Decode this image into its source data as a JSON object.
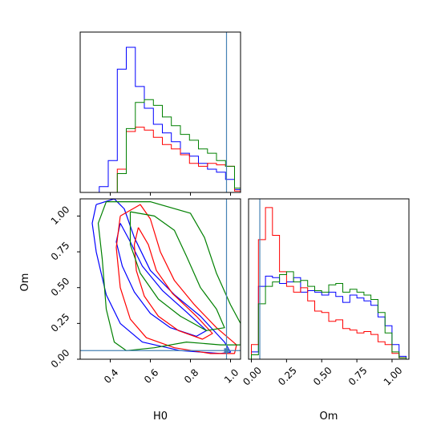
{
  "chart_data": {
    "type": "corner",
    "parameters": [
      "H0",
      "Om"
    ],
    "colors": {
      "blue": "#0000ff",
      "red": "#ff0000",
      "green": "#008000",
      "truth": "#4682b4"
    },
    "truth": {
      "H0": 0.98,
      "Om": 0.06
    },
    "panels": [
      {
        "id": "hist-H0",
        "type": "histogram",
        "xlim": [
          0.25,
          1.05
        ],
        "bins": [
          0.255,
          0.3,
          0.345,
          0.39,
          0.435,
          0.48,
          0.525,
          0.57,
          0.615,
          0.66,
          0.705,
          0.75,
          0.795,
          0.84,
          0.885,
          0.93,
          0.975,
          1.02,
          1.05
        ],
        "series": [
          {
            "color": "blue",
            "counts": [
              0,
              0,
              4,
              22,
              85,
              100,
              73,
              58,
              47,
              41,
              35,
              27,
              25,
              20,
              16,
              14,
              9,
              2
            ]
          },
          {
            "color": "red",
            "counts": [
              0,
              0,
              0,
              0,
              16,
              42,
              45,
              43,
              38,
              33,
              30,
              26,
              20,
              18,
              20,
              19,
              18,
              1
            ]
          },
          {
            "color": "green",
            "counts": [
              0,
              0,
              0,
              0,
              13,
              44,
              62,
              64,
              60,
              52,
              46,
              40,
              36,
              30,
              27,
              22,
              18,
              3
            ]
          }
        ]
      },
      {
        "id": "contour-H0-Om",
        "type": "contour",
        "xlim": [
          0.25,
          1.05
        ],
        "ylim": [
          0.0,
          1.12
        ],
        "xticks": [
          "0.4",
          "0.6",
          "0.8",
          "1.0"
        ],
        "yticks": [
          "0.00",
          "0.25",
          "0.50",
          "0.75",
          "1.00"
        ],
        "xlabel": "H0",
        "ylabel": "Om",
        "series": [
          {
            "color": "blue",
            "level": "outer",
            "points": [
              [
                0.33,
                1.08
              ],
              [
                0.42,
                1.12
              ],
              [
                0.47,
                1.05
              ],
              [
                0.52,
                0.85
              ],
              [
                0.6,
                0.62
              ],
              [
                0.72,
                0.45
              ],
              [
                0.85,
                0.3
              ],
              [
                0.97,
                0.12
              ],
              [
                1.0,
                0.05
              ],
              [
                0.95,
                0.04
              ],
              [
                0.75,
                0.06
              ],
              [
                0.56,
                0.12
              ],
              [
                0.45,
                0.25
              ],
              [
                0.38,
                0.45
              ],
              [
                0.33,
                0.75
              ],
              [
                0.31,
                0.95
              ],
              [
                0.33,
                1.08
              ]
            ]
          },
          {
            "color": "blue",
            "level": "inner",
            "points": [
              [
                0.45,
                0.95
              ],
              [
                0.5,
                0.82
              ],
              [
                0.56,
                0.65
              ],
              [
                0.66,
                0.48
              ],
              [
                0.78,
                0.33
              ],
              [
                0.88,
                0.2
              ],
              [
                0.83,
                0.16
              ],
              [
                0.7,
                0.22
              ],
              [
                0.6,
                0.32
              ],
              [
                0.52,
                0.47
              ],
              [
                0.46,
                0.65
              ],
              [
                0.43,
                0.82
              ],
              [
                0.45,
                0.95
              ]
            ]
          },
          {
            "color": "red",
            "level": "outer",
            "points": [
              [
                0.45,
                1.0
              ],
              [
                0.55,
                1.08
              ],
              [
                0.6,
                0.98
              ],
              [
                0.65,
                0.75
              ],
              [
                0.72,
                0.55
              ],
              [
                0.82,
                0.38
              ],
              [
                0.93,
                0.22
              ],
              [
                1.03,
                0.1
              ],
              [
                1.02,
                0.04
              ],
              [
                0.9,
                0.04
              ],
              [
                0.72,
                0.08
              ],
              [
                0.58,
                0.15
              ],
              [
                0.5,
                0.28
              ],
              [
                0.45,
                0.5
              ],
              [
                0.43,
                0.78
              ],
              [
                0.45,
                1.0
              ]
            ]
          },
          {
            "color": "red",
            "level": "inner",
            "points": [
              [
                0.54,
                0.92
              ],
              [
                0.59,
                0.8
              ],
              [
                0.63,
                0.62
              ],
              [
                0.71,
                0.46
              ],
              [
                0.83,
                0.3
              ],
              [
                0.91,
                0.18
              ],
              [
                0.86,
                0.14
              ],
              [
                0.74,
                0.2
              ],
              [
                0.64,
                0.3
              ],
              [
                0.57,
                0.44
              ],
              [
                0.53,
                0.62
              ],
              [
                0.52,
                0.8
              ],
              [
                0.54,
                0.92
              ]
            ]
          },
          {
            "color": "green",
            "level": "outer",
            "points": [
              [
                0.38,
                1.1
              ],
              [
                0.6,
                1.1
              ],
              [
                0.8,
                1.02
              ],
              [
                0.87,
                0.85
              ],
              [
                0.93,
                0.6
              ],
              [
                1.0,
                0.38
              ],
              [
                1.05,
                0.25
              ],
              [
                1.05,
                0.1
              ],
              [
                0.95,
                0.1
              ],
              [
                0.78,
                0.12
              ],
              [
                0.62,
                0.08
              ],
              [
                0.48,
                0.06
              ],
              [
                0.42,
                0.12
              ],
              [
                0.38,
                0.35
              ],
              [
                0.36,
                0.7
              ],
              [
                0.34,
                0.95
              ],
              [
                0.38,
                1.1
              ]
            ]
          },
          {
            "color": "green",
            "level": "inner",
            "points": [
              [
                0.5,
                1.03
              ],
              [
                0.62,
                1.0
              ],
              [
                0.72,
                0.9
              ],
              [
                0.78,
                0.72
              ],
              [
                0.85,
                0.5
              ],
              [
                0.93,
                0.35
              ],
              [
                0.97,
                0.22
              ],
              [
                0.88,
                0.2
              ],
              [
                0.75,
                0.3
              ],
              [
                0.64,
                0.42
              ],
              [
                0.55,
                0.6
              ],
              [
                0.5,
                0.8
              ],
              [
                0.5,
                1.03
              ]
            ]
          }
        ]
      },
      {
        "id": "hist-Om",
        "type": "histogram",
        "xlim": [
          -0.02,
          1.12
        ],
        "xticks": [
          "0.00",
          "0.25",
          "0.50",
          "0.75",
          "1.00"
        ],
        "xlabel": "Om",
        "bins": [
          0.0,
          0.05,
          0.1,
          0.15,
          0.2,
          0.25,
          0.3,
          0.35,
          0.4,
          0.45,
          0.5,
          0.55,
          0.6,
          0.65,
          0.7,
          0.75,
          0.8,
          0.85,
          0.9,
          0.95,
          1.0,
          1.05,
          1.1
        ],
        "series": [
          {
            "color": "blue",
            "counts": [
              5,
              50,
              57,
              56,
              52,
              53,
              56,
              46,
              47,
              46,
              44,
              46,
              43,
              39,
              44,
              42,
              40,
              37,
              29,
              23,
              10,
              2
            ]
          },
          {
            "color": "red",
            "counts": [
              10,
              82,
              104,
              85,
              60,
              50,
              46,
              49,
              40,
              33,
              32,
              26,
              27,
              21,
              20,
              18,
              19,
              17,
              12,
              10,
              4,
              1
            ]
          },
          {
            "color": "green",
            "counts": [
              3,
              38,
              50,
              53,
              58,
              60,
              53,
              54,
              50,
              47,
              46,
              51,
              52,
              46,
              48,
              46,
              44,
              41,
              32,
              18,
              5,
              1
            ]
          }
        ]
      }
    ]
  }
}
